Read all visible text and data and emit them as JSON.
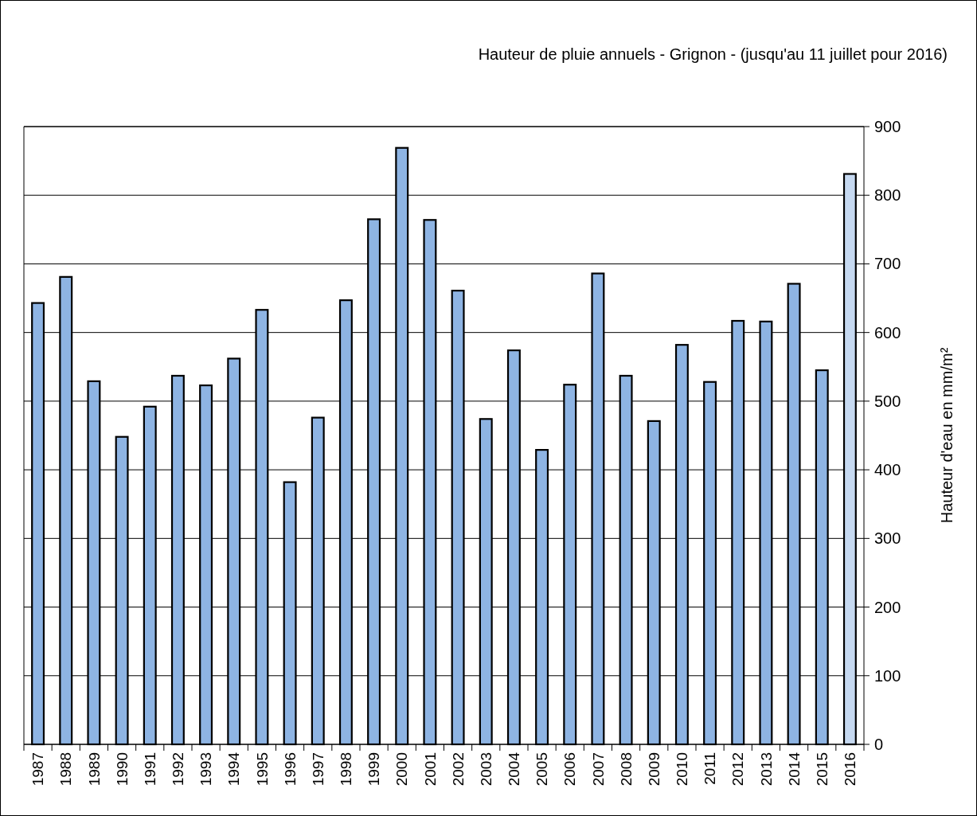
{
  "chart_data": {
    "type": "bar",
    "title": "Hauteur de pluie annuels - Grignon - (jusqu'au 11 juillet pour 2016)",
    "ylabel": "Hauteur d'eau en mm/m²",
    "categories": [
      "1987",
      "1988",
      "1989",
      "1990",
      "1991",
      "1992",
      "1993",
      "1994",
      "1995",
      "1996",
      "1997",
      "1998",
      "1999",
      "2000",
      "2001",
      "2002",
      "2003",
      "2004",
      "2005",
      "2006",
      "2007",
      "2008",
      "2009",
      "2010",
      "2011",
      "2012",
      "2013",
      "2014",
      "2015",
      "2016"
    ],
    "values": [
      643,
      681,
      529,
      448,
      492,
      537,
      523,
      562,
      633,
      382,
      476,
      647,
      765,
      869,
      764,
      661,
      474,
      574,
      429,
      524,
      686,
      537,
      471,
      582,
      528,
      617,
      616,
      671,
      545,
      831
    ],
    "colors": [
      "#8eb4e3",
      "#8eb4e3",
      "#8eb4e3",
      "#8eb4e3",
      "#8eb4e3",
      "#8eb4e3",
      "#8eb4e3",
      "#8eb4e3",
      "#8eb4e3",
      "#8eb4e3",
      "#8eb4e3",
      "#8eb4e3",
      "#8eb4e3",
      "#8eb4e3",
      "#8eb4e3",
      "#8eb4e3",
      "#8eb4e3",
      "#8eb4e3",
      "#8eb4e3",
      "#8eb4e3",
      "#8eb4e3",
      "#8eb4e3",
      "#8eb4e3",
      "#8eb4e3",
      "#8eb4e3",
      "#8eb4e3",
      "#8eb4e3",
      "#8eb4e3",
      "#8eb4e3",
      "#c6d9f1"
    ],
    "ylim": [
      0,
      900
    ],
    "yticks": [
      0,
      100,
      200,
      300,
      400,
      500,
      600,
      700,
      800,
      900
    ],
    "grid": "y"
  }
}
